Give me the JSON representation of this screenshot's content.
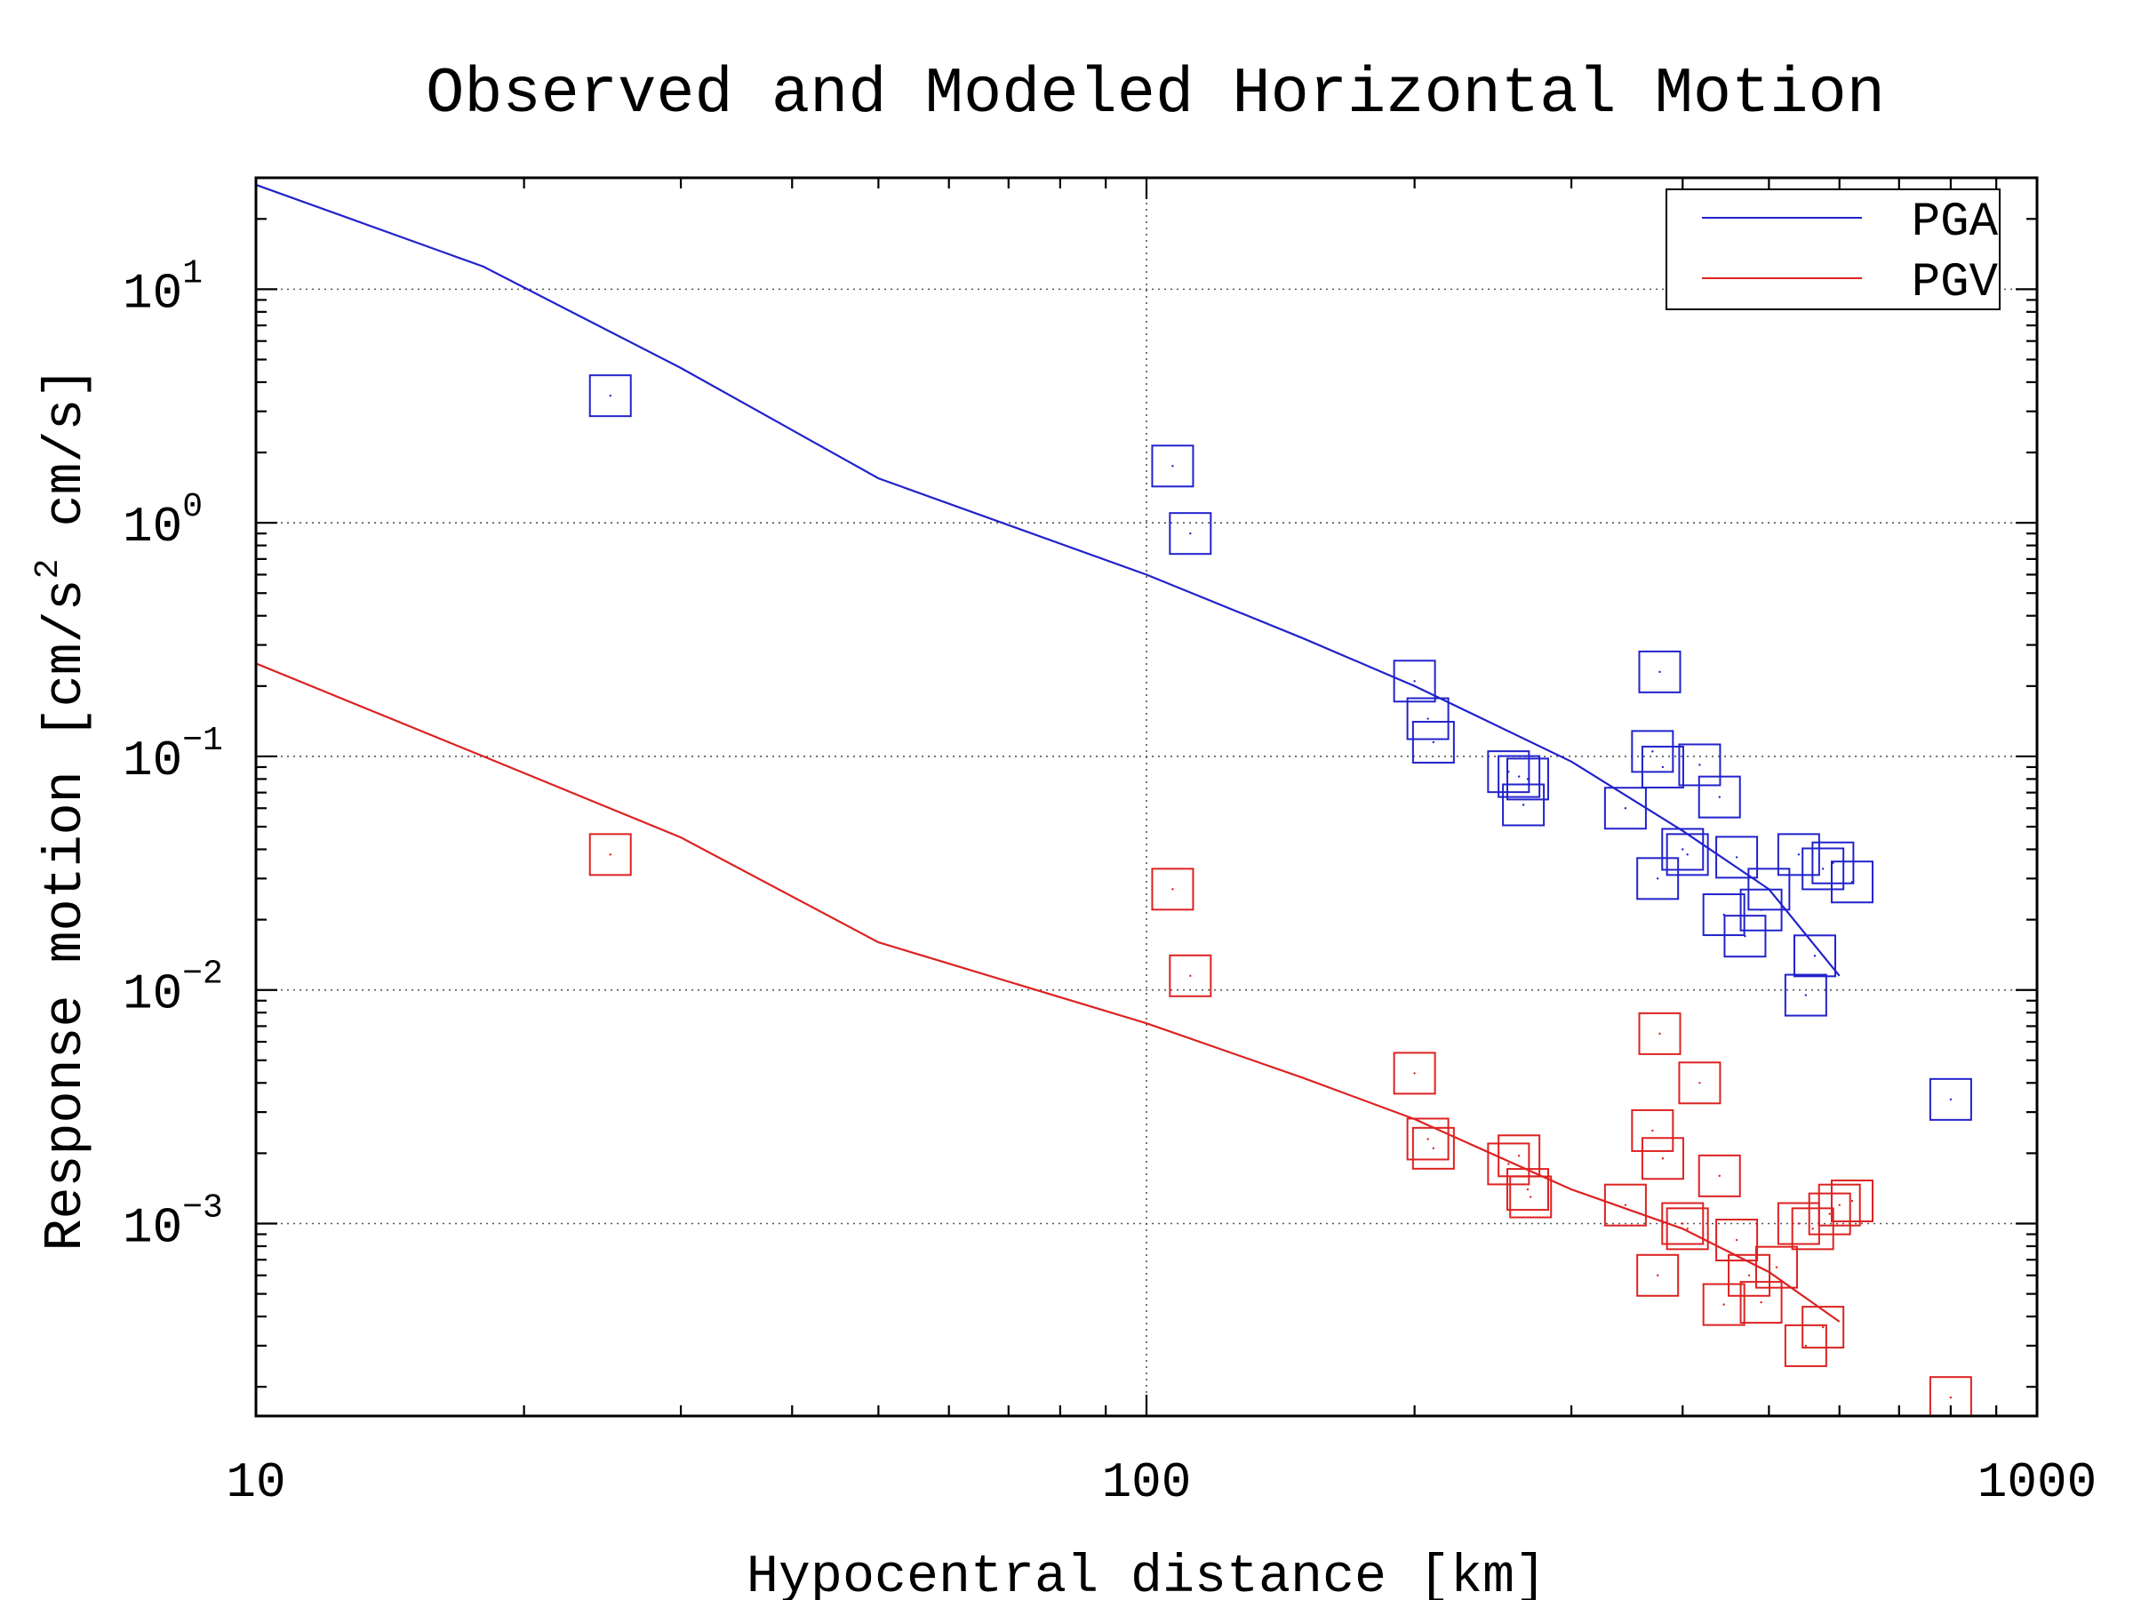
{
  "chart_data": {
    "type": "scatter",
    "title": "Observed and Modeled Horizontal Motion",
    "xlabel": "Hypocentral distance [km]",
    "ylabel": "Response motion  [cm/s² cm/s]",
    "ylabel_parts": [
      "Response motion  [cm/s",
      "2",
      "  cm/s]"
    ],
    "xscale": "log",
    "yscale": "log",
    "xlim": [
      10,
      1000
    ],
    "ylim": [
      0.00015,
      30
    ],
    "x_ticks": [
      "10",
      "100",
      "1000"
    ],
    "y_ticks": [
      {
        "base": "10",
        "exp": "1",
        "value": 10
      },
      {
        "base": "10",
        "exp": "0",
        "value": 1
      },
      {
        "base": "10",
        "exp": "−1",
        "value": 0.1
      },
      {
        "base": "10",
        "exp": "−2",
        "value": 0.01
      },
      {
        "base": "10",
        "exp": "−3",
        "value": 0.001
      }
    ],
    "grid": true,
    "legend_position": "top-right",
    "series": [
      {
        "name": "PGA",
        "color": "#2222cc",
        "line": [
          [
            10,
            28
          ],
          [
            18,
            12.5
          ],
          [
            30,
            4.6
          ],
          [
            50,
            1.55
          ],
          [
            100,
            0.6
          ],
          [
            150,
            0.32
          ],
          [
            200,
            0.2
          ],
          [
            300,
            0.095
          ],
          [
            400,
            0.048
          ],
          [
            500,
            0.027
          ],
          [
            600,
            0.0115
          ]
        ],
        "points": [
          [
            25,
            3.5
          ],
          [
            107,
            1.75
          ],
          [
            112,
            0.9
          ],
          [
            200,
            0.21
          ],
          [
            207,
            0.145
          ],
          [
            210,
            0.115
          ],
          [
            255,
            0.086
          ],
          [
            262,
            0.082
          ],
          [
            268,
            0.08
          ],
          [
            265,
            0.062
          ],
          [
            345,
            0.06
          ],
          [
            370,
            0.105
          ],
          [
            377,
            0.23
          ],
          [
            380,
            0.09
          ],
          [
            400,
            0.04
          ],
          [
            405,
            0.038
          ],
          [
            418,
            0.092
          ],
          [
            440,
            0.067
          ],
          [
            460,
            0.037
          ],
          [
            375,
            0.03
          ],
          [
            445,
            0.021
          ],
          [
            470,
            0.017
          ],
          [
            490,
            0.022
          ],
          [
            500,
            0.027
          ],
          [
            540,
            0.038
          ],
          [
            550,
            0.0095
          ],
          [
            563,
            0.014
          ],
          [
            575,
            0.033
          ],
          [
            590,
            0.035
          ],
          [
            620,
            0.029
          ],
          [
            800,
            0.0034
          ]
        ]
      },
      {
        "name": "PGV",
        "color": "#dd2222",
        "line": [
          [
            10,
            0.25
          ],
          [
            18,
            0.1
          ],
          [
            30,
            0.045
          ],
          [
            50,
            0.016
          ],
          [
            100,
            0.0072
          ],
          [
            150,
            0.0042
          ],
          [
            200,
            0.0028
          ],
          [
            300,
            0.0014
          ],
          [
            400,
            0.00095
          ],
          [
            500,
            0.00062
          ],
          [
            600,
            0.00038
          ]
        ],
        "points": [
          [
            25,
            0.038
          ],
          [
            107,
            0.027
          ],
          [
            112,
            0.0115
          ],
          [
            200,
            0.0044
          ],
          [
            207,
            0.0023
          ],
          [
            210,
            0.0021
          ],
          [
            255,
            0.0018
          ],
          [
            262,
            0.00195
          ],
          [
            268,
            0.0014
          ],
          [
            270,
            0.0013
          ],
          [
            345,
            0.0012
          ],
          [
            370,
            0.0025
          ],
          [
            375,
            0.0006
          ],
          [
            377,
            0.0065
          ],
          [
            380,
            0.0019
          ],
          [
            400,
            0.001
          ],
          [
            405,
            0.00095
          ],
          [
            418,
            0.004
          ],
          [
            440,
            0.0016
          ],
          [
            445,
            0.00045
          ],
          [
            460,
            0.00085
          ],
          [
            475,
            0.0006
          ],
          [
            490,
            0.00046
          ],
          [
            510,
            0.00065
          ],
          [
            540,
            0.001
          ],
          [
            550,
            0.0003
          ],
          [
            560,
            0.00095
          ],
          [
            575,
            0.00036
          ],
          [
            585,
            0.0011
          ],
          [
            600,
            0.0012
          ],
          [
            620,
            0.00125
          ],
          [
            800,
            0.00018
          ]
        ]
      }
    ]
  }
}
